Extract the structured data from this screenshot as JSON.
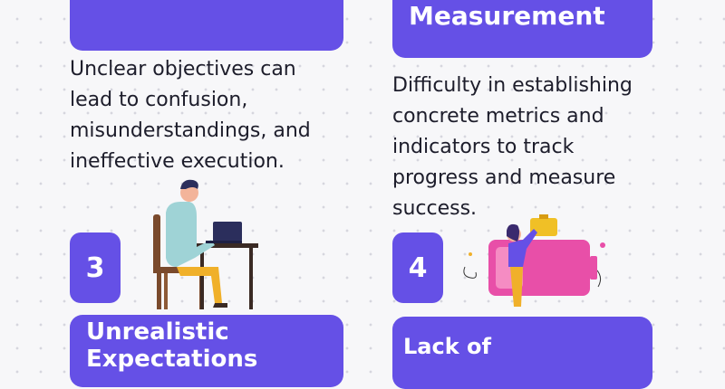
{
  "sections": [
    {
      "body": "Unclear objectives can\nlead to confusion,\nmisunderstandings, and\nineffective execution."
    },
    {
      "header": "Measurement",
      "body": "Difficulty in establishing\nconcrete metrics and\nindicators to track\nprogress and measure\nsuccess."
    },
    {
      "number": "3",
      "header": "Unrealistic\nExpectations"
    },
    {
      "number": "4",
      "header": "Lack of"
    }
  ],
  "colors": {
    "card": "#6550e6",
    "text": "#1d1d2b",
    "background": "#f7f7f9"
  },
  "icons": [
    "person-at-laptop-illustration",
    "person-with-battery-illustration"
  ]
}
